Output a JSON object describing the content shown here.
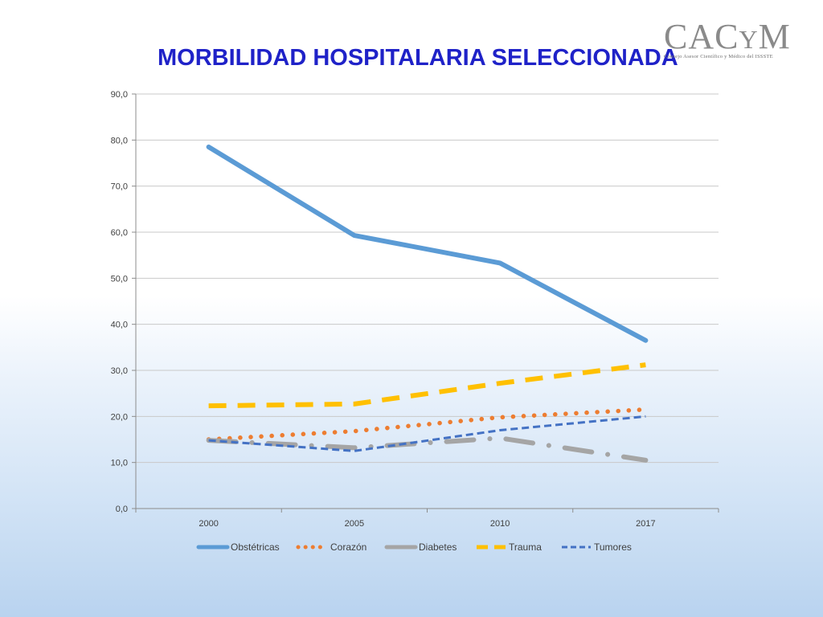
{
  "title": "MORBILIDAD HOSPITALARIA SELECCIONADA",
  "logo": {
    "main": "CACyM",
    "main_big1": "CAC",
    "main_small": "Y",
    "main_big2": "M",
    "subtitle": "Consejo Asesor Científico y Médico del ISSSTE"
  },
  "chart_data": {
    "type": "line",
    "categories": [
      "2000",
      "2005",
      "2010",
      "2017"
    ],
    "ylim": [
      0,
      90
    ],
    "yticks": [
      "0,0",
      "10,0",
      "20,0",
      "30,0",
      "40,0",
      "50,0",
      "60,0",
      "70,0",
      "80,0",
      "90,0"
    ],
    "grid": true,
    "legend_position": "bottom",
    "series": [
      {
        "name": "Obstétricas",
        "values": [
          78.5,
          59.3,
          53.3,
          36.5
        ],
        "color": "#5b9bd5",
        "style": "solid"
      },
      {
        "name": "Corazón",
        "values": [
          15.0,
          16.8,
          19.8,
          21.5
        ],
        "color": "#ed7d31",
        "style": "dotted"
      },
      {
        "name": "Diabetes",
        "values": [
          14.8,
          13.2,
          15.3,
          10.5
        ],
        "color": "#a5a5a5",
        "style": "longdash"
      },
      {
        "name": "Trauma",
        "values": [
          22.3,
          22.7,
          27.2,
          31.2
        ],
        "color": "#ffc000",
        "style": "dashed"
      },
      {
        "name": "Tumores",
        "values": [
          14.8,
          12.5,
          17.0,
          20.0
        ],
        "color": "#4472c4",
        "style": "shortdash"
      }
    ]
  }
}
